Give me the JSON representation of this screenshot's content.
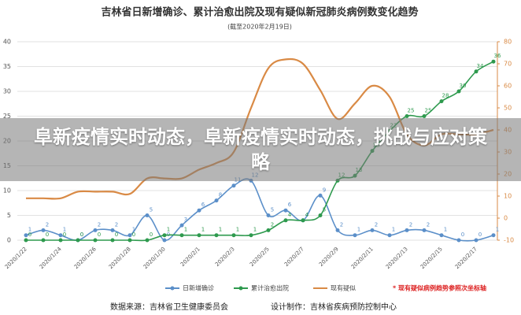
{
  "chart_data": {
    "type": "line",
    "title": "吉林省日新增确诊、累计治愈出院及现有疑似新冠肺炎病例数变化趋势",
    "subtitle": "(截至2020年2月19日)",
    "categories": [
      "2020/1/22",
      null,
      "2020/1/24",
      null,
      "2020/1/26",
      null,
      "2020/1/28",
      null,
      "2020/1/30",
      null,
      "2020/2/1",
      null,
      "2020/2/3",
      null,
      "2020/2/5",
      null,
      "2020/2/7",
      null,
      "2020/2/9",
      null,
      "2020/2/11",
      null,
      "2020/2/13",
      null,
      "2020/2/15",
      null,
      "2020/2/17",
      null
    ],
    "series": [
      {
        "name": "日新增确诊",
        "color": "#5b8fc9",
        "values": [
          1,
          2,
          1,
          0,
          2,
          2,
          1,
          5,
          0,
          3,
          6,
          8,
          11,
          12,
          5,
          6,
          4,
          9,
          2,
          1,
          2,
          1,
          2,
          2,
          1,
          0,
          0,
          1
        ]
      },
      {
        "name": "累计治愈出院",
        "color": "#2e9a4e",
        "values": [
          0,
          0,
          0,
          0,
          0,
          0,
          0,
          0,
          1,
          1,
          1,
          1,
          1,
          1,
          2,
          4,
          4,
          5,
          12,
          13,
          18,
          22,
          25,
          25,
          28,
          30,
          34,
          36
        ]
      },
      {
        "name": "现有疑似",
        "color": "#d98a45",
        "axis": "y2",
        "values": [
          9,
          9,
          9,
          12,
          12,
          12,
          11,
          18,
          18,
          18,
          22,
          25,
          30,
          50,
          68,
          72,
          70,
          58,
          45,
          52,
          60,
          55,
          38,
          33,
          38,
          38,
          38,
          40
        ]
      }
    ],
    "ylim": [
      0,
      40
    ],
    "yticks": [
      0,
      5,
      10,
      15,
      20,
      25,
      30,
      35,
      40
    ],
    "y2lim": [
      -10,
      80
    ],
    "y2ticks": [
      -10,
      0,
      10,
      20,
      30,
      40,
      50,
      60,
      70,
      80
    ],
    "grid": true,
    "annotation": "* 现有疑似病例趋势参照次坐标轴",
    "source": "数据来源：吉林省卫生健康委员会",
    "designer": "设计制作：吉林省疾病预防控制中心"
  },
  "banner": "阜新疫情实时动态，阜新疫情实时动态，挑战与应对策略"
}
